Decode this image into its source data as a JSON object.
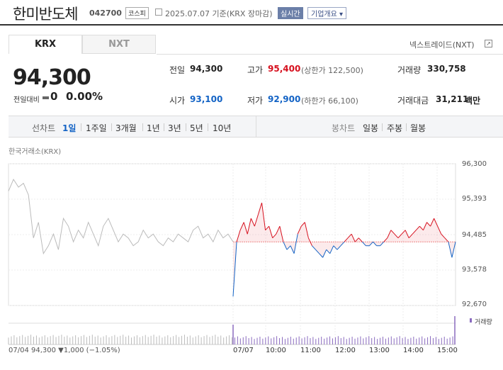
{
  "header": {
    "stock_name": "한미반도체",
    "stock_code": "042700",
    "market": "코스피",
    "date_text": "2025.07.07  기준(KRX 장마감)",
    "realtime": "실시간",
    "company_overview": "기업개요 ▾"
  },
  "tabs": {
    "krx": "KRX",
    "nxt": "NXT",
    "nxt_link": "넥스트레이드(NXT)"
  },
  "price": {
    "current": "94,300",
    "diff_label": "전일대비",
    "diff_value": "0",
    "diff_rate": "0.00%"
  },
  "stats": {
    "prev_label": "전일",
    "prev_value": "94,300",
    "open_label": "시가",
    "open_value": "93,100",
    "high_label": "고가",
    "high_value": "95,400",
    "upper_limit": "(상한가 122,500)",
    "low_label": "저가",
    "low_value": "92,900",
    "lower_limit": "(하한가 66,100)",
    "volume_label": "거래량",
    "volume_value": "330,758",
    "amount_label": "거래대금",
    "amount_value": "31,211",
    "amount_unit": "백만"
  },
  "period_bar": {
    "line_label": "선차트",
    "periods": [
      "1일",
      "1주일",
      "3개월",
      "1년",
      "3년",
      "5년",
      "10년"
    ],
    "candle_label": "봉차트",
    "candles": [
      "일봉",
      "주봉",
      "월봉"
    ]
  },
  "chart_data": {
    "type": "line",
    "exchange_label": "한국거래소(KRX)",
    "y_ticks": [
      "96,300",
      "95,393",
      "94,485",
      "93,578",
      "92,670"
    ],
    "ylim": [
      92670,
      96300
    ],
    "x_ticks": [
      "07/04",
      "07/07",
      "10:00",
      "11:00",
      "12:00",
      "13:00",
      "14:00",
      "15:00"
    ],
    "reference_price": 94300,
    "series": [
      {
        "name": "07/04",
        "color": "#bbbbbb",
        "values": [
          95600,
          95900,
          95700,
          95800,
          95500,
          94400,
          94800,
          94000,
          94200,
          94500,
          94100,
          94900,
          94700,
          94300,
          94600,
          94400,
          94800,
          94500,
          94200,
          94700,
          94900,
          94600,
          94300,
          94500,
          94400,
          94200,
          94300,
          94600,
          94400,
          94500,
          94300,
          94200,
          94400,
          94300,
          94500,
          94400,
          94300,
          94600,
          94700,
          94400,
          94500,
          94300,
          94600,
          94400,
          94500,
          94300
        ]
      },
      {
        "name": "07/07",
        "color_up": "#d6101e",
        "color_down": "#1363c5",
        "values": [
          92900,
          94300,
          94600,
          94800,
          94500,
          94900,
          94700,
          95000,
          95300,
          94600,
          94700,
          94400,
          94500,
          94700,
          94300,
          94100,
          94200,
          94000,
          94500,
          94700,
          94800,
          94400,
          94200,
          94100,
          94000,
          93900,
          94100,
          94000,
          94200,
          94100,
          94200,
          94300,
          94400,
          94500,
          94300,
          94400,
          94300,
          94200,
          94200,
          94300,
          94200,
          94200,
          94300,
          94400,
          94600,
          94500,
          94400,
          94500,
          94600,
          94400,
          94500,
          94600,
          94700,
          94600,
          94800,
          94700,
          94900,
          94700,
          94500,
          94400,
          94300,
          93900,
          94300
        ]
      }
    ],
    "volume_label": "거래량",
    "volume_color": "#8a6bbf"
  },
  "bottom_info": "07/04   94,300 ▼1,000 (−1.05%)"
}
